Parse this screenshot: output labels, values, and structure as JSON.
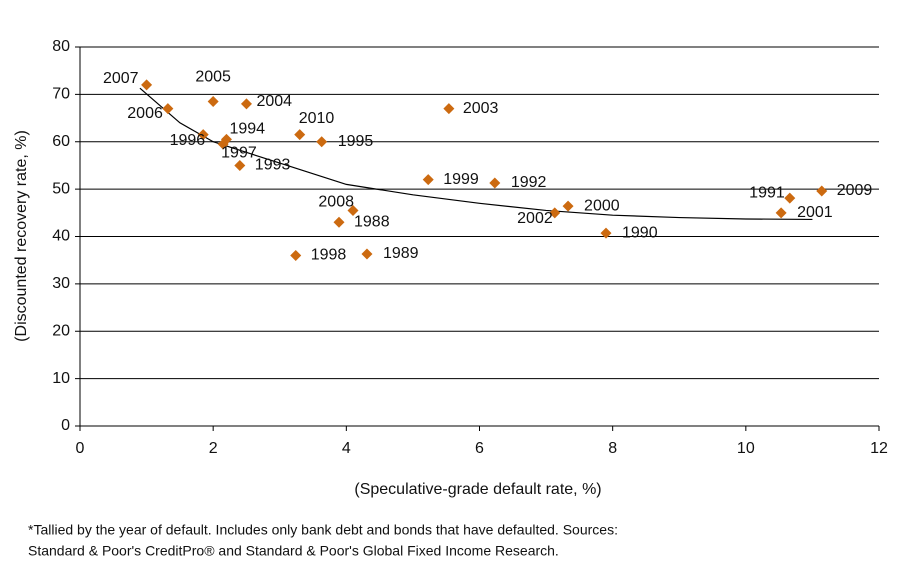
{
  "chart_data": {
    "type": "scatter",
    "x_label": "(Speculative-grade default rate, %)",
    "y_label": "(Discounted recovery rate, %)",
    "labels": [
      "2007",
      "2006",
      "2005",
      "2004",
      "1996",
      "1994",
      "1997",
      "1993",
      "2010",
      "1995",
      "2003",
      "1999",
      "1992",
      "2008",
      "1988",
      "1998",
      "1989",
      "2002",
      "2000",
      "1990",
      "1991",
      "2001",
      "2009"
    ],
    "x": [
      1.0,
      1.32,
      2.0,
      2.5,
      1.85,
      2.2,
      2.15,
      2.4,
      3.3,
      3.63,
      5.54,
      5.23,
      6.23,
      4.1,
      3.89,
      3.24,
      4.31,
      7.13,
      7.33,
      7.9,
      10.66,
      10.53,
      11.14
    ],
    "y": [
      72,
      67,
      68.5,
      68,
      61.5,
      60.5,
      59.5,
      55,
      61.5,
      60,
      67,
      52,
      51.3,
      45.5,
      43,
      36,
      36.3,
      45,
      46.4,
      40.7,
      48.1,
      45,
      49.6
    ],
    "color": "#cc6a10",
    "trend": {
      "x": [
        0.9,
        1.5,
        2,
        3,
        4,
        5,
        6,
        7,
        8,
        9,
        10,
        11
      ],
      "y": [
        71.3,
        64,
        60,
        55.5,
        51,
        48.8,
        47,
        45.5,
        44.5,
        44,
        43.7,
        43.6
      ]
    },
    "xlim": [
      0,
      12
    ],
    "xticks": [
      0,
      2,
      4,
      6,
      8,
      10,
      12
    ],
    "ylim": [
      0,
      80
    ],
    "yticks": [
      0,
      10,
      20,
      30,
      40,
      50,
      60,
      70,
      80
    ],
    "grid": true,
    "note": [
      "*Tallied by the year of default. Includes only bank debt and bonds that have defaulted. Sources:",
      "Standard & Poor's CreditPro® and Standard & Poor's Global Fixed Income Research."
    ]
  }
}
